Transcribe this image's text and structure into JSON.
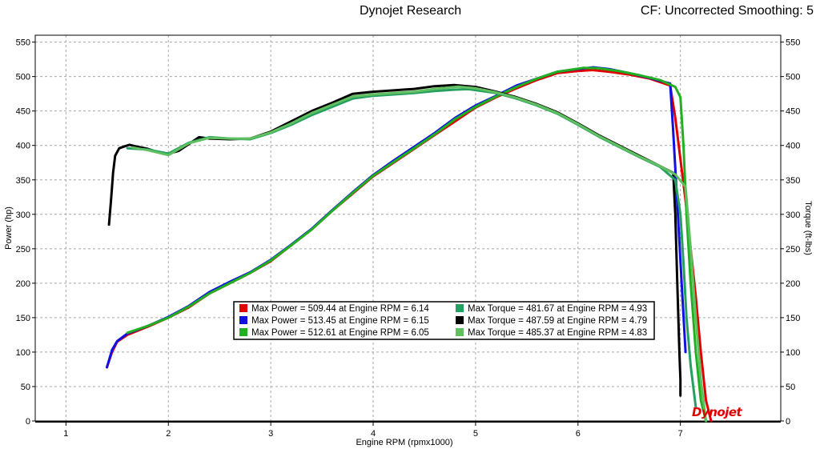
{
  "header": {
    "title": "Dynojet Research",
    "cf_label": "CF: Uncorrected Smoothing: 5"
  },
  "logo_text": "Dynojet",
  "chart_data": {
    "type": "line",
    "xlabel": "Engine RPM (rpmx1000)",
    "ylabel_left": "Power (hp)",
    "ylabel_right": "Torque (ft-lbs)",
    "xlim": [
      0.7,
      7.98
    ],
    "ylim": [
      0,
      560
    ],
    "x_ticks": [
      1,
      2,
      3,
      4,
      5,
      6,
      7
    ],
    "y_ticks": [
      0,
      50,
      100,
      150,
      200,
      250,
      300,
      350,
      400,
      450,
      500,
      550
    ],
    "grid": true,
    "legend_position": "center-left",
    "colors": {
      "red": "#e00000",
      "blue": "#1010e0",
      "green": "#20b020",
      "teal": "#25a060",
      "black": "#000000",
      "lightgreen": "#60c060"
    },
    "legend": [
      {
        "color": "#e00000",
        "text": "Max Power = 509.44 at Engine RPM = 6.14"
      },
      {
        "color": "#1010e0",
        "text": "Max Power = 513.45 at Engine RPM = 6.15"
      },
      {
        "color": "#20b020",
        "text": "Max Power = 512.61 at Engine RPM = 6.05"
      },
      {
        "color": "#25a060",
        "text": "Max Torque = 481.67 at Engine RPM = 4.93"
      },
      {
        "color": "#000000",
        "text": "Max Torque = 487.59 at Engine RPM = 4.79"
      },
      {
        "color": "#60c060",
        "text": "Max Torque = 485.37 at Engine RPM = 4.83"
      }
    ],
    "series": [
      {
        "color": "#e00000",
        "kind": "power",
        "x": [
          1.4,
          1.45,
          1.5,
          1.6,
          1.8,
          2.0,
          2.2,
          2.4,
          2.6,
          2.8,
          3.0,
          3.2,
          3.4,
          3.6,
          3.8,
          4.0,
          4.2,
          4.4,
          4.6,
          4.8,
          5.0,
          5.2,
          5.4,
          5.6,
          5.8,
          6.0,
          6.14,
          6.3,
          6.5,
          6.7,
          6.9,
          6.95,
          7.0,
          7.05,
          7.1,
          7.15,
          7.2,
          7.25,
          7.3
        ],
        "y": [
          78,
          100,
          115,
          125,
          137,
          150,
          165,
          185,
          200,
          215,
          232,
          255,
          278,
          305,
          330,
          355,
          375,
          395,
          415,
          435,
          455,
          470,
          483,
          495,
          505,
          508,
          509.44,
          507,
          503,
          497,
          487,
          440,
          380,
          320,
          250,
          180,
          100,
          30,
          0
        ]
      },
      {
        "color": "#1010e0",
        "kind": "power",
        "x": [
          1.4,
          1.45,
          1.5,
          1.6,
          1.8,
          2.0,
          2.2,
          2.4,
          2.6,
          2.8,
          3.0,
          3.2,
          3.4,
          3.6,
          3.8,
          4.0,
          4.2,
          4.4,
          4.6,
          4.8,
          5.0,
          5.2,
          5.4,
          5.6,
          5.8,
          6.0,
          6.15,
          6.3,
          6.5,
          6.7,
          6.9,
          6.93,
          6.96,
          6.99,
          7.02,
          7.05
        ],
        "y": [
          78,
          103,
          116,
          127,
          138,
          151,
          167,
          187,
          202,
          216,
          234,
          256,
          279,
          306,
          332,
          357,
          378,
          398,
          418,
          440,
          458,
          472,
          487,
          497,
          507,
          511,
          513.45,
          511,
          505,
          498,
          490,
          420,
          340,
          260,
          180,
          100
        ]
      },
      {
        "color": "#20b020",
        "kind": "power",
        "x": [
          1.6,
          1.8,
          2.0,
          2.2,
          2.4,
          2.6,
          2.8,
          3.0,
          3.2,
          3.4,
          3.6,
          3.8,
          4.0,
          4.2,
          4.4,
          4.6,
          4.8,
          5.0,
          5.2,
          5.4,
          5.6,
          5.8,
          6.05,
          6.2,
          6.4,
          6.6,
          6.8,
          6.95,
          7.0,
          7.03,
          7.06,
          7.1,
          7.15,
          7.2,
          7.25
        ],
        "y": [
          128,
          138,
          150,
          166,
          185,
          200,
          215,
          233,
          255,
          278,
          305,
          331,
          356,
          376,
          396,
          416,
          438,
          456,
          471,
          485,
          497,
          507,
          512.61,
          512,
          508,
          502,
          495,
          485,
          470,
          400,
          300,
          200,
          100,
          30,
          0
        ]
      },
      {
        "color": "#000000",
        "kind": "torque",
        "x": [
          1.42,
          1.44,
          1.46,
          1.48,
          1.52,
          1.58,
          1.62,
          1.7,
          1.8,
          1.9,
          2.0,
          2.1,
          2.2,
          2.3,
          2.4,
          2.6,
          2.8,
          3.0,
          3.2,
          3.4,
          3.6,
          3.8,
          4.0,
          4.2,
          4.4,
          4.6,
          4.79,
          5.0,
          5.2,
          5.4,
          5.6,
          5.8,
          6.0,
          6.2,
          6.4,
          6.6,
          6.8,
          6.93,
          6.95,
          6.97,
          6.99,
          7.0,
          7.0
        ],
        "y": [
          285,
          320,
          360,
          385,
          396,
          399,
          401,
          398,
          395,
          390,
          388,
          392,
          402,
          412,
          410,
          409,
          410,
          420,
          435,
          450,
          462,
          475,
          478,
          480,
          482,
          486,
          487.59,
          485,
          478,
          470,
          460,
          448,
          432,
          415,
          400,
          385,
          370,
          360,
          300,
          200,
          100,
          60,
          37
        ]
      },
      {
        "color": "#25a060",
        "kind": "torque",
        "x": [
          1.6,
          1.8,
          2.0,
          2.2,
          2.4,
          2.6,
          2.8,
          3.0,
          3.2,
          3.4,
          3.6,
          3.8,
          4.0,
          4.2,
          4.4,
          4.6,
          4.8,
          4.93,
          5.2,
          5.4,
          5.6,
          5.8,
          6.0,
          6.2,
          6.4,
          6.6,
          6.8,
          6.95,
          7.0,
          7.03,
          7.06,
          7.1,
          7.15
        ],
        "y": [
          396,
          394,
          388,
          404,
          412,
          410,
          409,
          418,
          430,
          444,
          456,
          468,
          472,
          474,
          476,
          479,
          481,
          481.67,
          476,
          468,
          458,
          446,
          430,
          413,
          398,
          383,
          369,
          350,
          300,
          230,
          150,
          80,
          20
        ]
      },
      {
        "color": "#60c060",
        "kind": "torque",
        "x": [
          1.65,
          1.8,
          2.0,
          2.2,
          2.4,
          2.6,
          2.8,
          3.0,
          3.2,
          3.4,
          3.6,
          3.8,
          4.0,
          4.2,
          4.4,
          4.6,
          4.83,
          5.0,
          5.2,
          5.4,
          5.6,
          5.8,
          6.0,
          6.2,
          6.4,
          6.6,
          6.8,
          6.95,
          7.05,
          7.1,
          7.15,
          7.2,
          7.25
        ],
        "y": [
          397,
          393,
          386,
          403,
          411,
          410,
          410,
          419,
          432,
          447,
          459,
          471,
          474,
          476,
          478,
          482,
          485.37,
          483,
          477,
          469,
          459,
          447,
          431,
          414,
          399,
          384,
          370,
          358,
          340,
          250,
          150,
          60,
          0
        ]
      }
    ]
  }
}
